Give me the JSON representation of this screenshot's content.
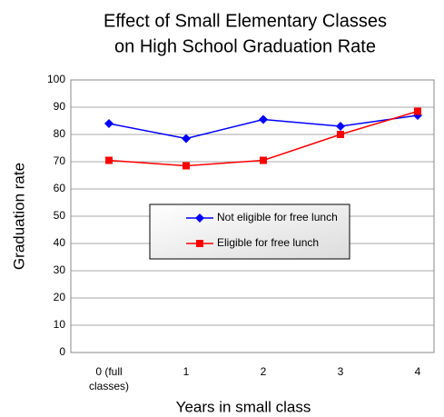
{
  "chart_data": {
    "type": "line",
    "title": [
      "Effect of Small Elementary Classes",
      "on High School Graduation Rate"
    ],
    "x_label": "Years in small class",
    "y_label": "Graduation rate",
    "categories": [
      "0 (full classes)",
      "1",
      "2",
      "3",
      "4"
    ],
    "series": [
      {
        "name": "Not eligible for free lunch",
        "color": "#0000ff",
        "marker": "diamond",
        "values": [
          84,
          78.5,
          85.5,
          83,
          87
        ]
      },
      {
        "name": "Eligible for free lunch",
        "color": "#ff0000",
        "marker": "square",
        "values": [
          70.5,
          68.5,
          70.5,
          80,
          88.5
        ]
      }
    ],
    "ylim": [
      0,
      100
    ],
    "yticks": [
      0,
      10,
      20,
      30,
      40,
      50,
      60,
      70,
      80,
      90,
      100
    ],
    "grid": true
  }
}
